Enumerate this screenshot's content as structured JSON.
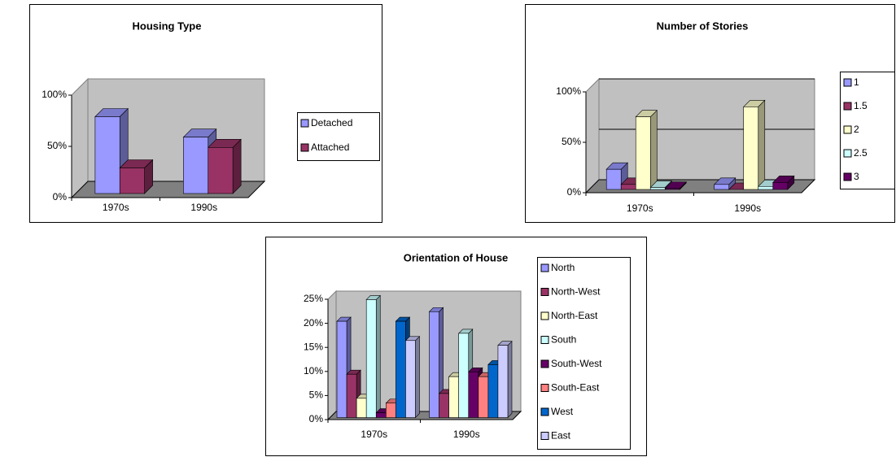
{
  "chart_data": [
    {
      "type": "bar",
      "title": "Housing Type",
      "categories": [
        "1970s",
        "1990s"
      ],
      "series": [
        {
          "name": "Detached",
          "color": "#9999ff",
          "values": [
            75,
            55
          ]
        },
        {
          "name": "Attached",
          "color": "#993366",
          "values": [
            25,
            45
          ]
        }
      ],
      "ylim": [
        0,
        100
      ],
      "yticks": [
        {
          "value": 0,
          "label": "0%"
        },
        {
          "value": 50,
          "label": "50%"
        },
        {
          "value": 100,
          "label": "100%"
        }
      ],
      "legend": "right",
      "grid": false
    },
    {
      "type": "bar",
      "title": "Number of Stories",
      "categories": [
        "1970s",
        "1990s"
      ],
      "series": [
        {
          "name": "1",
          "color": "#9999ff",
          "values": [
            20,
            5
          ]
        },
        {
          "name": "1.5",
          "color": "#993366",
          "values": [
            5,
            0
          ]
        },
        {
          "name": "2",
          "color": "#ffffcc",
          "values": [
            72,
            82
          ]
        },
        {
          "name": "2.5",
          "color": "#ccffff",
          "values": [
            2,
            3
          ]
        },
        {
          "name": "3",
          "color": "#660066",
          "values": [
            1,
            7
          ]
        }
      ],
      "ylim": [
        0,
        100
      ],
      "yticks": [
        {
          "value": 0,
          "label": "0%"
        },
        {
          "value": 50,
          "label": "50%"
        },
        {
          "value": 100,
          "label": "100%"
        }
      ],
      "legend": "right",
      "grid": true
    },
    {
      "type": "bar",
      "title": "Orientation of House",
      "categories": [
        "1970s",
        "1990s"
      ],
      "series": [
        {
          "name": "North",
          "color": "#9999ff",
          "values": [
            20,
            22
          ]
        },
        {
          "name": "North-West",
          "color": "#993366",
          "values": [
            9,
            5
          ]
        },
        {
          "name": "North-East",
          "color": "#ffffcc",
          "values": [
            4,
            8.5
          ]
        },
        {
          "name": "South",
          "color": "#ccffff",
          "values": [
            24.5,
            17.5
          ]
        },
        {
          "name": "South-West",
          "color": "#660066",
          "values": [
            1,
            9.5
          ]
        },
        {
          "name": "South-East",
          "color": "#ff8080",
          "values": [
            3,
            8.5
          ]
        },
        {
          "name": "West",
          "color": "#0066cc",
          "values": [
            20,
            11
          ]
        },
        {
          "name": "East",
          "color": "#ccccff",
          "values": [
            16,
            15
          ]
        }
      ],
      "ylim": [
        0,
        25
      ],
      "yticks": [
        {
          "value": 0,
          "label": "0%"
        },
        {
          "value": 5,
          "label": "5%"
        },
        {
          "value": 10,
          "label": "10%"
        },
        {
          "value": 15,
          "label": "15%"
        },
        {
          "value": 20,
          "label": "20%"
        },
        {
          "value": 25,
          "label": "25%"
        }
      ],
      "legend": "right",
      "grid": false
    }
  ]
}
